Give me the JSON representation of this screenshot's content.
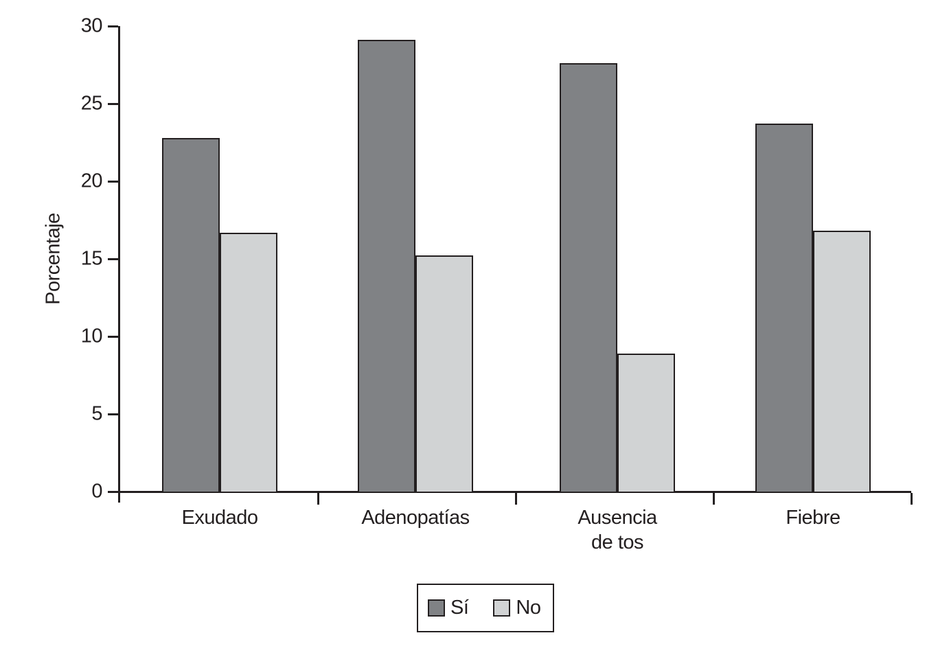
{
  "chart_data": {
    "type": "bar",
    "title": "",
    "xlabel": "",
    "ylabel": "Porcentaje",
    "categories": [
      "Exudado",
      "Adenopatías",
      "Ausencia de tos",
      "Fiebre"
    ],
    "category_display": [
      "Exudado",
      "Adenopatías",
      "Ausencia\nde tos",
      "Fiebre"
    ],
    "series": [
      {
        "name": "Sí",
        "color": "#808285",
        "values": [
          22.8,
          29.1,
          27.6,
          23.7
        ]
      },
      {
        "name": "No",
        "color": "#d1d3d4",
        "values": [
          16.7,
          15.2,
          8.9,
          16.8
        ]
      }
    ],
    "ylim": [
      0,
      30
    ],
    "yticks": [
      0,
      5,
      10,
      15,
      20,
      25,
      30
    ],
    "grid": false,
    "legend_position": "bottom",
    "axis_color": "#231f20",
    "bar_border_color": "#231f20"
  },
  "legend": {
    "items": [
      {
        "label": "Sí",
        "color": "#808285"
      },
      {
        "label": "No",
        "color": "#d1d3d4"
      }
    ]
  }
}
